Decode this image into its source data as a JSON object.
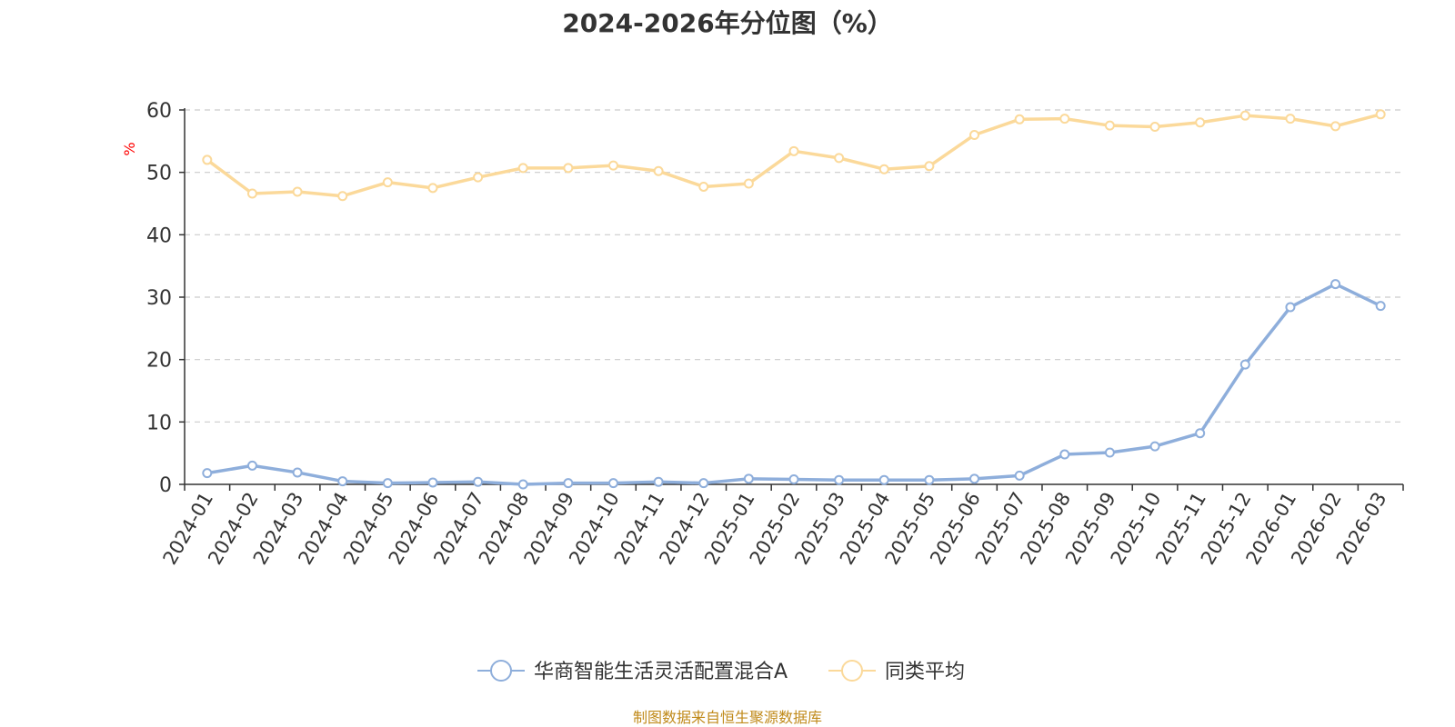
{
  "chart_data": {
    "type": "line",
    "title": "2024-2026年分位图（%）",
    "ylabel": "%",
    "xlabel": "",
    "ylim": [
      0,
      60
    ],
    "y_ticks": [
      0,
      10,
      20,
      30,
      40,
      50,
      60
    ],
    "grid": true,
    "legend_position": "bottom-center",
    "categories": [
      "2024-01",
      "2024-02",
      "2024-03",
      "2024-04",
      "2024-05",
      "2024-06",
      "2024-07",
      "2024-08",
      "2024-09",
      "2024-10",
      "2024-11",
      "2024-12",
      "2025-01",
      "2025-02",
      "2025-03",
      "2025-04",
      "2025-05",
      "2025-06",
      "2025-07",
      "2025-08",
      "2025-09",
      "2025-10",
      "2025-11",
      "2025-12",
      "2026-01",
      "2026-02",
      "2026-03"
    ],
    "series": [
      {
        "name": "华商智能生活灵活配置混合A",
        "color": "#8eaedb",
        "values": [
          1.8,
          3.0,
          1.9,
          0.5,
          0.2,
          0.3,
          0.4,
          0.0,
          0.2,
          0.2,
          0.4,
          0.2,
          0.9,
          0.8,
          0.7,
          0.7,
          0.7,
          0.9,
          1.4,
          4.8,
          5.1,
          6.1,
          8.2,
          19.2,
          28.4,
          32.1,
          28.6
        ]
      },
      {
        "name": "同类平均",
        "color": "#fbd99a",
        "values": [
          52.0,
          46.6,
          46.9,
          46.2,
          48.4,
          47.5,
          49.2,
          50.7,
          50.7,
          51.1,
          50.2,
          47.7,
          48.2,
          53.4,
          52.3,
          50.5,
          51.0,
          56.0,
          58.5,
          58.6,
          57.5,
          57.3,
          58.0,
          59.1,
          58.6,
          57.4,
          59.3
        ]
      }
    ],
    "source": "制图数据来自恒生聚源数据库",
    "source_color": "#c08a1a",
    "ylabel_color": "#ff0000"
  }
}
